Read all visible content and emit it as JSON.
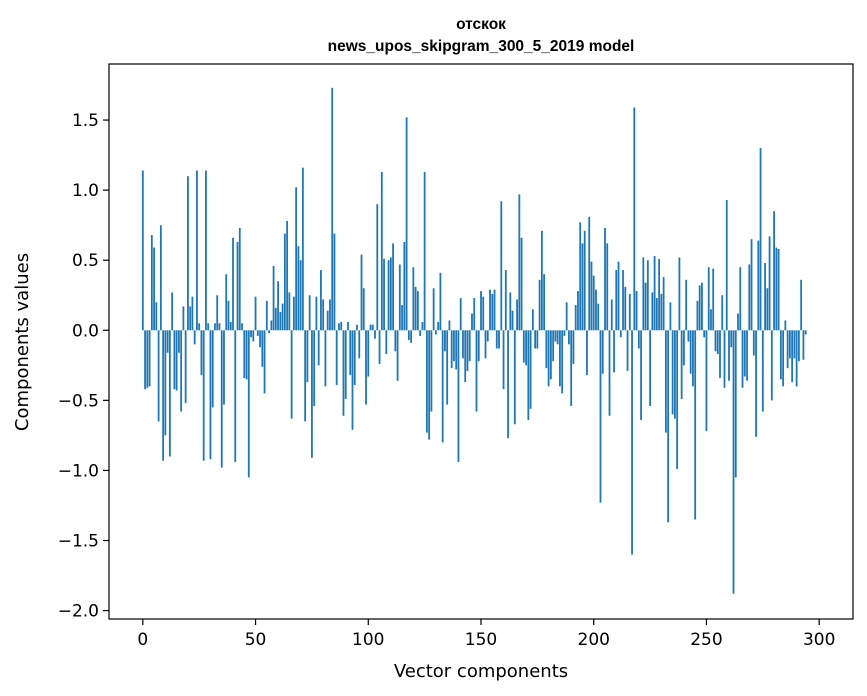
{
  "chart_data": {
    "type": "bar",
    "title_lines": [
      "отскок",
      "news_upos_skipgram_300_5_2019 model"
    ],
    "xlabel": "Vector components",
    "ylabel": "Components values",
    "xlim": [
      -15,
      315
    ],
    "ylim": [
      -2.06,
      1.9
    ],
    "x_ticks": [
      0,
      50,
      100,
      150,
      200,
      250,
      300
    ],
    "x_tick_labels": [
      "0",
      "50",
      "100",
      "150",
      "200",
      "250",
      "300"
    ],
    "y_ticks": [
      -2.0,
      -1.5,
      -1.0,
      -0.5,
      0.0,
      0.5,
      1.0,
      1.5
    ],
    "y_tick_labels": [
      "−2.0",
      "−1.5",
      "−1.0",
      "−0.5",
      "0.0",
      "0.5",
      "1.0",
      "1.5"
    ],
    "grid": false,
    "bar_color": "#1f77b4",
    "series": [
      {
        "x_start": 0,
        "values": [
          1.14,
          -0.42,
          -0.41,
          -0.4,
          0.68,
          0.59,
          0.2,
          -0.65,
          0.75,
          -0.93,
          -0.75,
          -0.16,
          -0.9,
          0.27,
          -0.42,
          -0.43,
          -0.16,
          -0.58,
          0.17,
          -0.52,
          1.1,
          0.17,
          0.24,
          -0.1,
          1.14,
          0.05,
          -0.32,
          -0.93,
          1.14,
          0.05,
          -0.92,
          -0.55,
          0.05,
          0.25,
          0.05,
          -0.98,
          -0.53,
          0.4,
          0.21,
          0.06,
          0.66,
          -0.94,
          0.63,
          0.73,
          0.05,
          -0.34,
          -0.35,
          -1.05,
          -0.05,
          -0.08,
          0.24,
          -0.04,
          -0.12,
          -0.26,
          -0.45,
          0.21,
          -0.02,
          0.07,
          0.46,
          0.16,
          0.35,
          0.13,
          0.19,
          0.69,
          0.78,
          0.27,
          -0.63,
          0.24,
          1.02,
          0.6,
          0.5,
          1.16,
          -0.65,
          -0.37,
          0.25,
          -0.91,
          -0.54,
          0.24,
          -0.25,
          0.43,
          0.22,
          -0.4,
          0.14,
          0.22,
          1.73,
          0.69,
          -0.39,
          0.05,
          0.06,
          -0.61,
          -0.49,
          0.06,
          -0.32,
          -0.71,
          -0.39,
          0.04,
          -0.2,
          0.54,
          0.3,
          -0.53,
          -0.33,
          0.04,
          0.04,
          -0.06,
          0.9,
          -0.24,
          1.13,
          0.51,
          -0.17,
          0.5,
          0.52,
          0.62,
          -0.15,
          -0.36,
          0.47,
          0.18,
          0.63,
          1.52,
          -0.07,
          -0.09,
          0.45,
          0.31,
          0.28,
          -0.04,
          0.06,
          1.13,
          -0.73,
          -0.78,
          -0.58,
          0.3,
          -0.03,
          0.06,
          0.41,
          -0.8,
          -0.15,
          -0.53,
          0.07,
          -0.27,
          -0.22,
          -0.28,
          -0.94,
          0.23,
          -0.2,
          -0.37,
          -0.29,
          -0.22,
          0.12,
          0.23,
          -0.58,
          -0.22,
          0.28,
          0.24,
          -0.2,
          -0.08,
          0.29,
          0.26,
          0.29,
          -0.13,
          -0.13,
          0.92,
          -0.42,
          0.43,
          -0.77,
          0.27,
          0.14,
          -0.67,
          0.22,
          0.97,
          0.66,
          -0.23,
          -0.25,
          -0.64,
          -0.56,
          0.15,
          -0.13,
          -0.13,
          0.36,
          0.71,
          0.4,
          -0.27,
          -0.4,
          -0.35,
          -0.22,
          -0.08,
          -0.1,
          -0.4,
          -0.45,
          -0.04,
          0.2,
          -0.1,
          -0.54,
          -0.24,
          0.18,
          0.28,
          0.77,
          0.62,
          0.71,
          -0.32,
          0.81,
          0.49,
          0.39,
          0.29,
          0.19,
          -1.23,
          -0.31,
          0.73,
          0.62,
          -0.61,
          0.22,
          -0.3,
          0.43,
          0.49,
          -0.05,
          0.43,
          0.31,
          -0.29,
          0.26,
          -1.6,
          1.59,
          0.28,
          -0.13,
          -0.64,
          0.52,
          0.34,
          0.5,
          -0.54,
          0.27,
          0.53,
          0.23,
          0.51,
          0.26,
          0.38,
          -0.73,
          -1.37,
          0.2,
          -0.6,
          -0.63,
          -0.99,
          0.52,
          -0.49,
          -0.25,
          0.36,
          -0.08,
          -0.31,
          -0.4,
          -1.35,
          0.21,
          0.32,
          0.34,
          -0.05,
          -0.72,
          0.45,
          0.15,
          0.44,
          -0.15,
          -0.17,
          -0.34,
          0.25,
          -0.41,
          0.93,
          -0.36,
          -0.12,
          -1.88,
          -1.05,
          0.12,
          0.45,
          -0.41,
          -0.33,
          -0.36,
          0.47,
          0.65,
          -0.18,
          -0.76,
          0.64,
          1.3,
          -0.58,
          0.48,
          0.3,
          0.67,
          -0.5,
          0.85,
          0.59,
          0.58,
          -0.35,
          -0.4,
          0.07,
          -0.27,
          -0.2,
          -0.37,
          -0.2,
          -0.4,
          -0.22,
          0.36,
          -0.21,
          -0.03
        ]
      }
    ]
  }
}
